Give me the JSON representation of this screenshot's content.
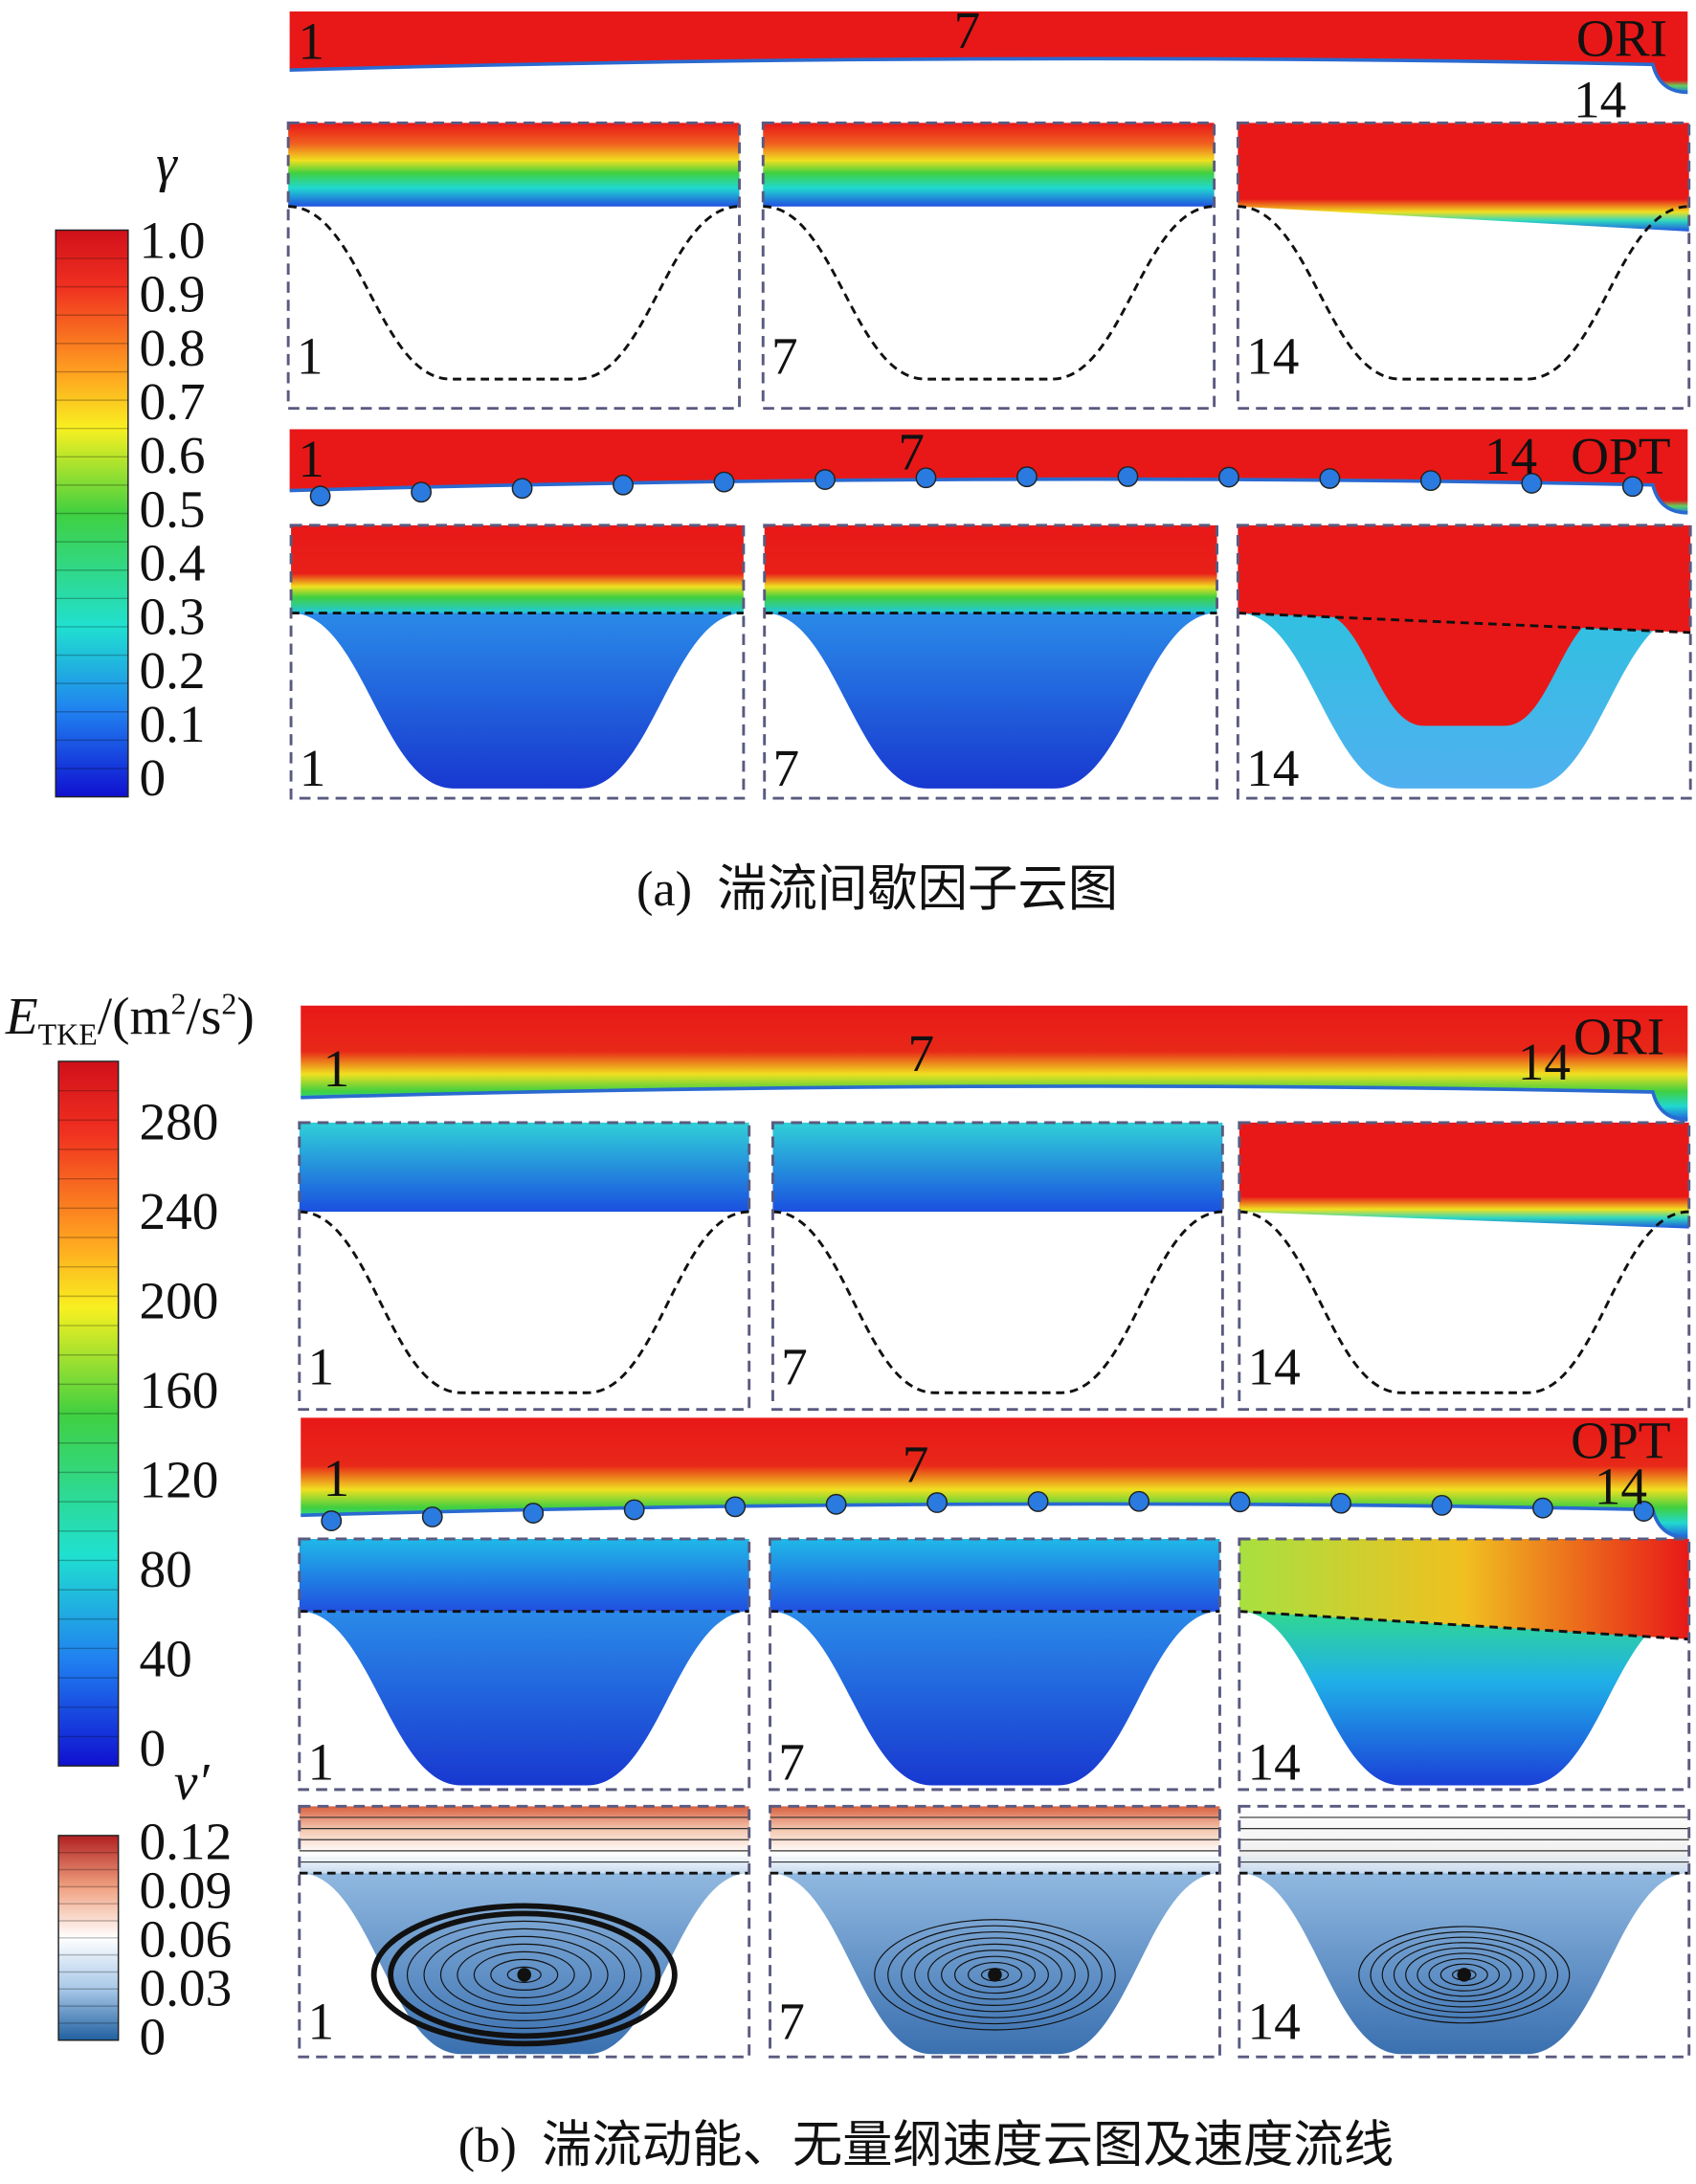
{
  "panel_a": {
    "colorbar": {
      "title": "γ",
      "ticks": [
        "1.0",
        "0.9",
        "0.8",
        "0.7",
        "0.6",
        "0.5",
        "0.4",
        "0.3",
        "0.2",
        "0.1",
        "0"
      ]
    },
    "ori_strip": {
      "labels": [
        "1",
        "7",
        "14"
      ],
      "tag": "ORI"
    },
    "ori_zoom": [
      "1",
      "7",
      "14"
    ],
    "opt_strip": {
      "labels": [
        "1",
        "7",
        "14"
      ],
      "tag": "OPT"
    },
    "opt_zoom": [
      "1",
      "7",
      "14"
    ],
    "caption": "(a)  湍流间歇因子云图"
  },
  "panel_b": {
    "colorbar": {
      "title": {
        "symbol": "E",
        "subscript": "TKE",
        "unit_open": "/(m",
        "exp1": "2",
        "unit_mid": "/s",
        "exp2": "2",
        "unit_close": ")"
      },
      "ticks": [
        "280",
        "240",
        "200",
        "160",
        "120",
        "80",
        "40",
        "0"
      ]
    },
    "ori_strip": {
      "labels": [
        "1",
        "7",
        "14"
      ],
      "tag": "ORI"
    },
    "ori_zoom": [
      "1",
      "7",
      "14"
    ],
    "opt_strip": {
      "labels": [
        "1",
        "7",
        "14"
      ],
      "tag": "OPT"
    },
    "opt_zoom": [
      "1",
      "7",
      "14"
    ],
    "velocity_colorbar": {
      "title": "v′",
      "ticks": [
        "0.12",
        "0.09",
        "0.06",
        "0.03",
        "0"
      ]
    },
    "velocity_zoom": [
      "1",
      "7",
      "14"
    ],
    "caption": "(b)  湍流动能、无量纲速度云图及速度流线"
  }
}
